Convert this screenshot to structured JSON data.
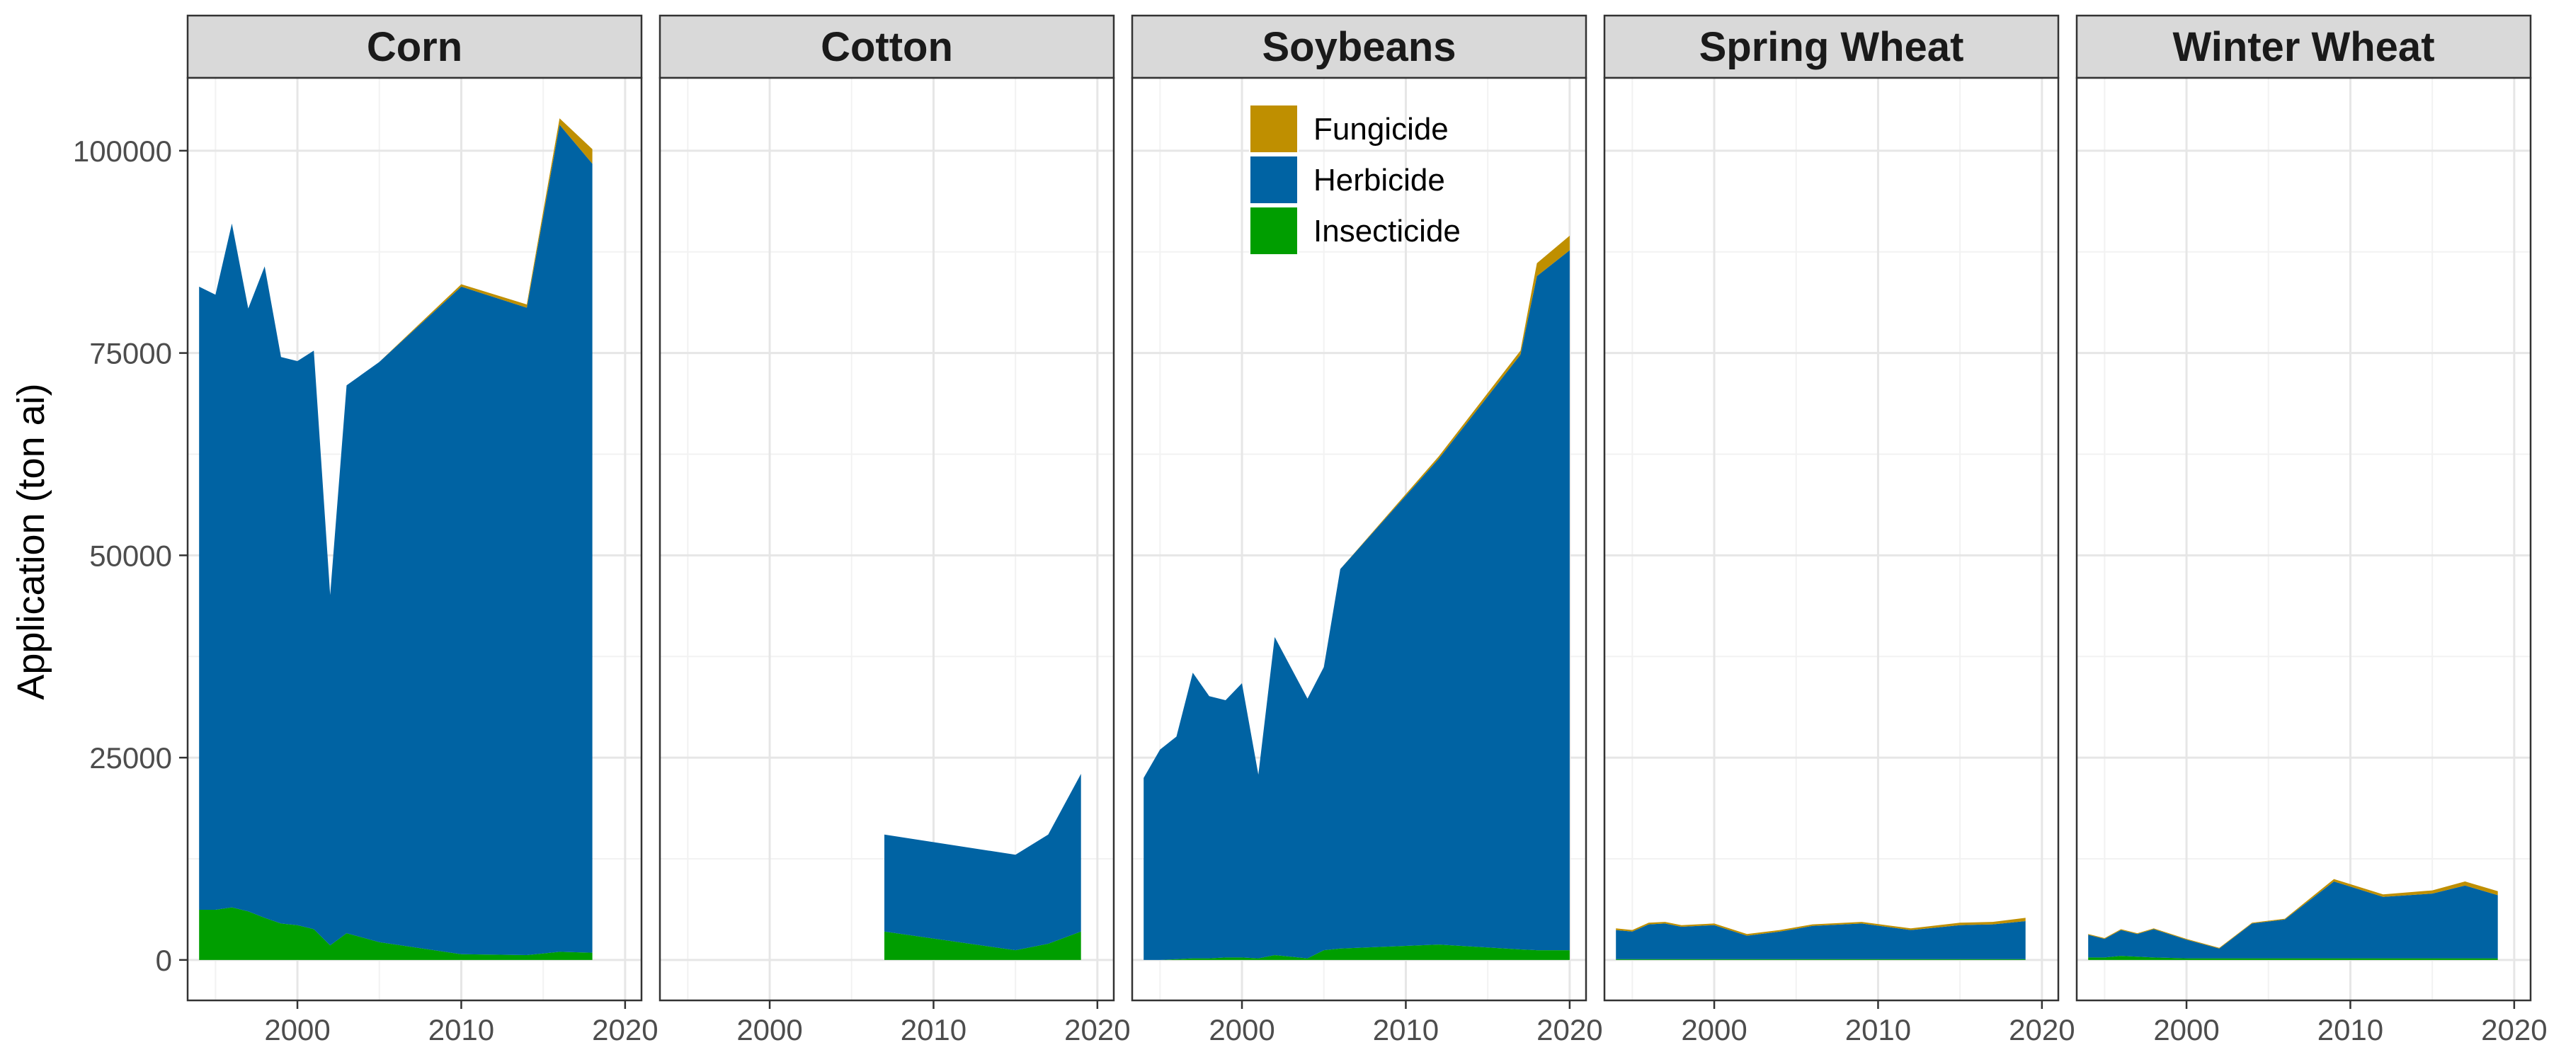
{
  "chart_data": {
    "type": "area",
    "stacked": true,
    "ylabel": "Application (ton ai)",
    "xlabel": "",
    "xlim": [
      1993.3,
      2021
    ],
    "ylim": [
      -5000,
      109000
    ],
    "x_ticks": [
      2000,
      2010,
      2020
    ],
    "y_ticks": [
      0,
      25000,
      50000,
      75000,
      100000
    ],
    "y_tick_labels": [
      "0",
      "25000",
      "50000",
      "75000",
      "100000"
    ],
    "grid": true,
    "legend": {
      "placement": "inside-top-center-of-third-panel",
      "entries": [
        {
          "name": "Fungicide",
          "color": "#BF8F00"
        },
        {
          "name": "Herbicide",
          "color": "#0063A3"
        },
        {
          "name": "Insecticide",
          "color": "#009E00"
        }
      ]
    },
    "stack_order": [
      "Insecticide",
      "Herbicide",
      "Fungicide"
    ],
    "panels": [
      {
        "title": "Corn",
        "x": [
          1994,
          1995,
          1996,
          1997,
          1998,
          1999,
          2000,
          2001,
          2002,
          2003,
          2005,
          2010,
          2014,
          2016,
          2018
        ],
        "series": [
          {
            "name": "Insecticide",
            "values": [
              6200,
              6200,
              6500,
              6000,
              5200,
              4500,
              4300,
              3800,
              1800,
              3300,
              2200,
              700,
              600,
              1000,
              900
            ]
          },
          {
            "name": "Herbicide",
            "values": [
              77000,
              76000,
              84500,
              74500,
              80500,
              70000,
              69700,
              71500,
              43300,
              67700,
              71700,
              82500,
              80000,
              102200,
              97500
            ]
          },
          {
            "name": "Fungicide",
            "values": [
              0,
              0,
              0,
              0,
              0,
              0,
              0,
              0,
              0,
              0,
              0,
              300,
              400,
              800,
              1800
            ]
          }
        ]
      },
      {
        "title": "Cotton",
        "x": [
          2007,
          2015,
          2017,
          2019
        ],
        "series": [
          {
            "name": "Insecticide",
            "values": [
              3500,
              1200,
              2000,
              3500
            ]
          },
          {
            "name": "Herbicide",
            "values": [
              12000,
              11800,
              13500,
              19500
            ]
          },
          {
            "name": "Fungicide",
            "values": [
              0,
              0,
              0,
              0
            ]
          }
        ]
      },
      {
        "title": "Soybeans",
        "x": [
          1994,
          1995,
          1996,
          1997,
          1998,
          1999,
          2000,
          2001,
          2002,
          2004,
          2005,
          2006,
          2012,
          2017,
          2018,
          2020
        ],
        "series": [
          {
            "name": "Insecticide",
            "values": [
              0,
              0,
              100,
              200,
              200,
              300,
              300,
              200,
              600,
              200,
              1200,
              1400,
              1900,
              1300,
              1200,
              1200
            ]
          },
          {
            "name": "Herbicide",
            "values": [
              22500,
              26000,
              27500,
              35300,
              32400,
              31800,
              33900,
              22700,
              39300,
              32100,
              35000,
              46900,
              60000,
              73500,
              83300,
              86500
            ]
          },
          {
            "name": "Fungicide",
            "values": [
              0,
              0,
              0,
              0,
              0,
              0,
              0,
              0,
              0,
              0,
              0,
              0,
              300,
              500,
              1600,
              1800
            ]
          }
        ]
      },
      {
        "title": "Spring Wheat",
        "x": [
          1994,
          1995,
          1996,
          1997,
          1998,
          2000,
          2002,
          2004,
          2006,
          2009,
          2012,
          2015,
          2017,
          2019
        ],
        "series": [
          {
            "name": "Insecticide",
            "values": [
              100,
              100,
              100,
              100,
              100,
              100,
              100,
              100,
              100,
              100,
              100,
              100,
              100,
              100
            ]
          },
          {
            "name": "Herbicide",
            "values": [
              3600,
              3400,
              4300,
              4400,
              4000,
              4200,
              2900,
              3400,
              4100,
              4400,
              3600,
              4200,
              4300,
              4700
            ]
          },
          {
            "name": "Fungicide",
            "values": [
              200,
              200,
              200,
              200,
              200,
              200,
              200,
              200,
              200,
              200,
              200,
              300,
              300,
              400
            ]
          }
        ]
      },
      {
        "title": "Winter Wheat",
        "x": [
          1994,
          1995,
          1996,
          1997,
          1998,
          2000,
          2002,
          2004,
          2006,
          2009,
          2012,
          2015,
          2017,
          2019
        ],
        "series": [
          {
            "name": "Insecticide",
            "values": [
              300,
              300,
              500,
              400,
              300,
              200,
              200,
              200,
              200,
              200,
              200,
              200,
              200,
              200
            ]
          },
          {
            "name": "Herbicide",
            "values": [
              2800,
              2300,
              3200,
              2800,
              3500,
              2300,
              1200,
              4300,
              4800,
              9500,
              7600,
              8000,
              9000,
              7800
            ]
          },
          {
            "name": "Fungicide",
            "values": [
              100,
              100,
              100,
              100,
              100,
              100,
              100,
              100,
              100,
              300,
              300,
              400,
              500,
              500
            ]
          }
        ]
      }
    ]
  }
}
